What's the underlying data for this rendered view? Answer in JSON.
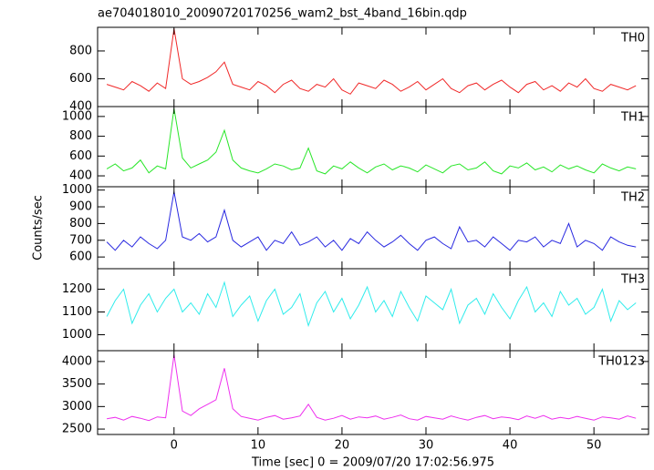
{
  "chart_data": [
    {
      "type": "line",
      "title": "ae704018010_20090720170256_wam2_bst_4band_16bin.qdp",
      "label": "TH0",
      "color": "#f02828",
      "x": [
        -8,
        -7,
        -6,
        -5,
        -4,
        -3,
        -2,
        -1,
        0,
        1,
        2,
        3,
        4,
        5,
        6,
        7,
        8,
        9,
        10,
        11,
        12,
        13,
        14,
        15,
        16,
        17,
        18,
        19,
        20,
        21,
        22,
        23,
        24,
        25,
        26,
        27,
        28,
        29,
        30,
        31,
        32,
        33,
        34,
        35,
        36,
        37,
        38,
        39,
        40,
        41,
        42,
        43,
        44,
        45,
        46,
        47,
        48,
        49,
        50,
        51,
        52,
        53,
        54,
        55
      ],
      "values": [
        560,
        540,
        520,
        580,
        550,
        510,
        570,
        530,
        960,
        600,
        560,
        580,
        610,
        650,
        720,
        560,
        540,
        520,
        580,
        550,
        500,
        560,
        590,
        530,
        510,
        560,
        540,
        600,
        520,
        490,
        570,
        550,
        530,
        590,
        560,
        510,
        540,
        580,
        520,
        560,
        600,
        530,
        500,
        550,
        570,
        520,
        560,
        590,
        540,
        500,
        560,
        580,
        520,
        550,
        510,
        570,
        540,
        600,
        530,
        510,
        560,
        540,
        520,
        550
      ],
      "xlim": [
        -9.1,
        56.5
      ],
      "ylim": [
        400,
        970
      ],
      "yticks": [
        400,
        600,
        800
      ]
    },
    {
      "type": "line",
      "label": "TH1",
      "color": "#28e628",
      "x": [
        -8,
        -7,
        -6,
        -5,
        -4,
        -3,
        -2,
        -1,
        0,
        1,
        2,
        3,
        4,
        5,
        6,
        7,
        8,
        9,
        10,
        11,
        12,
        13,
        14,
        15,
        16,
        17,
        18,
        19,
        20,
        21,
        22,
        23,
        24,
        25,
        26,
        27,
        28,
        29,
        30,
        31,
        32,
        33,
        34,
        35,
        36,
        37,
        38,
        39,
        40,
        41,
        42,
        43,
        44,
        45,
        46,
        47,
        48,
        49,
        50,
        51,
        52,
        53,
        54,
        55
      ],
      "values": [
        470,
        520,
        450,
        480,
        560,
        430,
        500,
        470,
        1080,
        580,
        480,
        520,
        560,
        640,
        860,
        560,
        480,
        450,
        430,
        470,
        520,
        500,
        460,
        480,
        680,
        450,
        420,
        500,
        470,
        540,
        480,
        430,
        490,
        520,
        460,
        500,
        480,
        440,
        510,
        470,
        430,
        500,
        520,
        460,
        480,
        540,
        450,
        420,
        500,
        480,
        530,
        460,
        490,
        440,
        510,
        470,
        500,
        460,
        430,
        520,
        480,
        450,
        490,
        470
      ],
      "xlim": [
        -9.1,
        56.5
      ],
      "ylim": [
        290,
        1100
      ],
      "yticks": [
        400,
        600,
        800,
        1000
      ]
    },
    {
      "type": "line",
      "ylabel": "Counts/sec",
      "label": "TH2",
      "color": "#2828e0",
      "x": [
        -8,
        -7,
        -6,
        -5,
        -4,
        -3,
        -2,
        -1,
        0,
        1,
        2,
        3,
        4,
        5,
        6,
        7,
        8,
        9,
        10,
        11,
        12,
        13,
        14,
        15,
        16,
        17,
        18,
        19,
        20,
        21,
        22,
        23,
        24,
        25,
        26,
        27,
        28,
        29,
        30,
        31,
        32,
        33,
        34,
        35,
        36,
        37,
        38,
        39,
        40,
        41,
        42,
        43,
        44,
        45,
        46,
        47,
        48,
        49,
        50,
        51,
        52,
        53,
        54,
        55
      ],
      "values": [
        690,
        640,
        700,
        660,
        720,
        680,
        650,
        700,
        990,
        720,
        700,
        740,
        690,
        720,
        880,
        700,
        660,
        690,
        720,
        640,
        700,
        680,
        750,
        670,
        690,
        720,
        660,
        700,
        640,
        710,
        680,
        750,
        700,
        660,
        690,
        730,
        680,
        640,
        700,
        720,
        680,
        650,
        780,
        690,
        700,
        660,
        720,
        680,
        640,
        700,
        690,
        720,
        660,
        700,
        680,
        800,
        660,
        700,
        680,
        640,
        720,
        690,
        670,
        660
      ],
      "xlim": [
        -9.1,
        56.5
      ],
      "ylim": [
        530,
        1020
      ],
      "yticks": [
        600,
        700,
        800,
        900,
        1000
      ]
    },
    {
      "type": "line",
      "label": "TH3",
      "color": "#30ecec",
      "x": [
        -8,
        -7,
        -6,
        -5,
        -4,
        -3,
        -2,
        -1,
        0,
        1,
        2,
        3,
        4,
        5,
        6,
        7,
        8,
        9,
        10,
        11,
        12,
        13,
        14,
        15,
        16,
        17,
        18,
        19,
        20,
        21,
        22,
        23,
        24,
        25,
        26,
        27,
        28,
        29,
        30,
        31,
        32,
        33,
        34,
        35,
        36,
        37,
        38,
        39,
        40,
        41,
        42,
        43,
        44,
        45,
        46,
        47,
        48,
        49,
        50,
        51,
        52,
        53,
        54,
        55
      ],
      "values": [
        1080,
        1150,
        1200,
        1050,
        1130,
        1180,
        1100,
        1160,
        1200,
        1100,
        1140,
        1090,
        1180,
        1120,
        1230,
        1080,
        1130,
        1170,
        1060,
        1150,
        1200,
        1090,
        1120,
        1180,
        1040,
        1140,
        1190,
        1100,
        1160,
        1070,
        1130,
        1210,
        1100,
        1150,
        1080,
        1190,
        1120,
        1060,
        1170,
        1140,
        1110,
        1200,
        1050,
        1130,
        1160,
        1090,
        1180,
        1120,
        1070,
        1150,
        1210,
        1100,
        1140,
        1080,
        1190,
        1130,
        1160,
        1090,
        1120,
        1200,
        1060,
        1150,
        1110,
        1140
      ],
      "xlim": [
        -9.1,
        56.5
      ],
      "ylim": [
        930,
        1290
      ],
      "yticks": [
        1000,
        1100,
        1200
      ]
    },
    {
      "type": "line",
      "xlabel": "Time [sec] 0 = 2009/07/20 17:02:56.975",
      "label": "TH0123",
      "color": "#ee30ee",
      "x": [
        -8,
        -7,
        -6,
        -5,
        -4,
        -3,
        -2,
        -1,
        0,
        1,
        2,
        3,
        4,
        5,
        6,
        7,
        8,
        9,
        10,
        11,
        12,
        13,
        14,
        15,
        16,
        17,
        18,
        19,
        20,
        21,
        22,
        23,
        24,
        25,
        26,
        27,
        28,
        29,
        30,
        31,
        32,
        33,
        34,
        35,
        36,
        37,
        38,
        39,
        40,
        41,
        42,
        43,
        44,
        45,
        46,
        47,
        48,
        49,
        50,
        51,
        52,
        53,
        54,
        55
      ],
      "values": [
        2730,
        2760,
        2700,
        2780,
        2740,
        2690,
        2770,
        2750,
        4150,
        2900,
        2800,
        2950,
        3050,
        3150,
        3850,
        2950,
        2780,
        2740,
        2700,
        2760,
        2800,
        2720,
        2750,
        2790,
        3050,
        2760,
        2700,
        2740,
        2800,
        2720,
        2770,
        2750,
        2790,
        2720,
        2760,
        2810,
        2730,
        2700,
        2780,
        2750,
        2720,
        2790,
        2740,
        2700,
        2760,
        2800,
        2730,
        2770,
        2750,
        2710,
        2790,
        2740,
        2800,
        2720,
        2760,
        2730,
        2780,
        2740,
        2700,
        2770,
        2750,
        2720,
        2790,
        2740
      ],
      "xlim": [
        -9.1,
        56.5
      ],
      "ylim": [
        2380,
        4240
      ],
      "yticks": [
        2500,
        3000,
        3500,
        4000
      ],
      "xticks": [
        0,
        10,
        20,
        30,
        40,
        50
      ]
    }
  ]
}
